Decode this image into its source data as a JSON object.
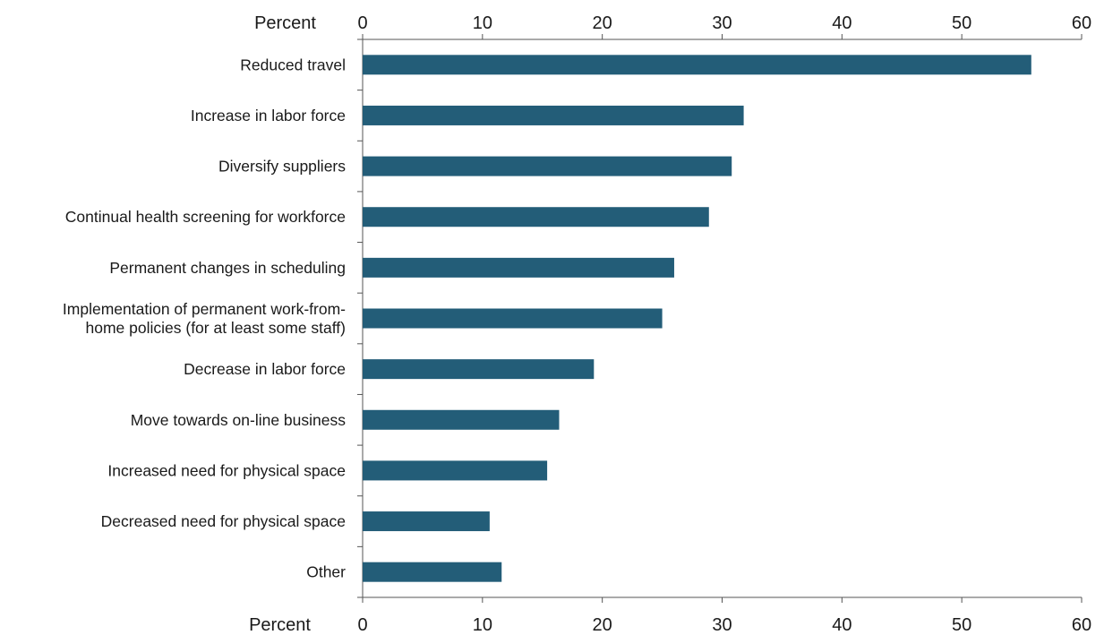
{
  "chart_data": {
    "type": "bar",
    "orientation": "horizontal",
    "x_axis_label_top": "Percent",
    "x_axis_label_bottom": "Percent",
    "xlim": [
      0,
      60
    ],
    "ticks": [
      0,
      10,
      20,
      30,
      40,
      50,
      60
    ],
    "tick_labels": [
      "0",
      "10",
      "20",
      "30",
      "40",
      "50",
      "60"
    ],
    "categories": [
      "Reduced travel",
      "Increase in labor force",
      "Diversify suppliers",
      "Continual health screening for workforce",
      "Permanent changes in scheduling",
      "Implementation of permanent work-from-home policies (for at least some staff)",
      "Decrease in labor force",
      "Move towards on-line business",
      "Increased need for physical space",
      "Decreased need for physical space",
      "Other"
    ],
    "category_lines": [
      [
        "Reduced travel"
      ],
      [
        "Increase in labor force"
      ],
      [
        "Diversify suppliers"
      ],
      [
        "Continual health screening for workforce"
      ],
      [
        "Permanent changes in scheduling"
      ],
      [
        "Implementation of permanent work-from-",
        "home policies (for at least some staff)"
      ],
      [
        "Decrease in labor force"
      ],
      [
        "Move towards on-line business"
      ],
      [
        "Increased need for physical space"
      ],
      [
        "Decreased need for physical space"
      ],
      [
        "Other"
      ]
    ],
    "values": [
      55.8,
      31.8,
      30.8,
      28.9,
      26.0,
      25.0,
      19.3,
      16.4,
      15.4,
      10.6,
      11.6
    ],
    "bar_color": "#235d78",
    "axis_color": "#555555",
    "grid": false,
    "legend": "none"
  }
}
